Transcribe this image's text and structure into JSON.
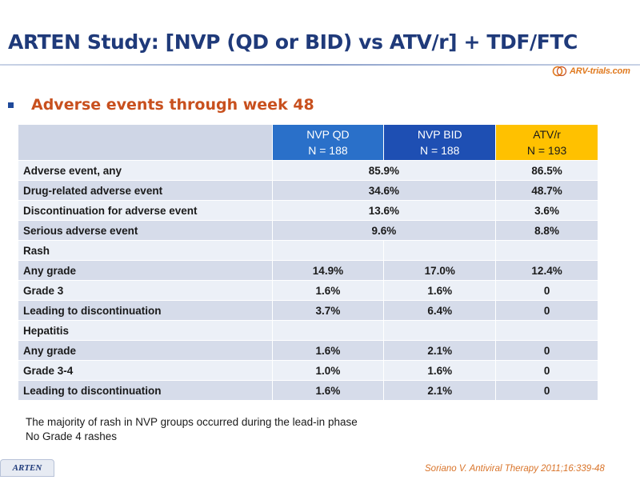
{
  "title": "ARTEN Study: [NVP (QD or BID) vs ATV/r] + TDF/FTC",
  "logo_text": "ARV-trials.com",
  "subtitle": "Adverse events through week 48",
  "table": {
    "headers": [
      {
        "line1": "NVP QD",
        "line2": "N = 188"
      },
      {
        "line1": "NVP BID",
        "line2": "N = 188"
      },
      {
        "line1": "ATV/r",
        "line2": "N = 193"
      }
    ],
    "rows": {
      "ae_any": {
        "label": "Adverse event, any",
        "nvp": "85.9%",
        "atv": "86.5%"
      },
      "drug_related": {
        "label": "Drug-related adverse event",
        "nvp": "34.6%",
        "atv": "48.7%"
      },
      "discontinuation": {
        "label": "Discontinuation for adverse event",
        "nvp": "13.6%",
        "atv": "3.6%"
      },
      "serious": {
        "label": "Serious adverse event",
        "nvp": "9.6%",
        "atv": "8.8%"
      },
      "rash": {
        "label": "Rash",
        "any_grade": {
          "label": "Any grade",
          "qd": "14.9%",
          "bid": "17.0%",
          "atv": "12.4%"
        },
        "grade3": {
          "label": "Grade 3",
          "qd": "1.6%",
          "bid": "1.6%",
          "atv": "0"
        },
        "leading": {
          "label": "Leading to discontinuation",
          "qd": "3.7%",
          "bid": "6.4%",
          "atv": "0"
        }
      },
      "hepatitis": {
        "label": "Hepatitis",
        "any_grade": {
          "label": "Any grade",
          "qd": "1.6%",
          "bid": "2.1%",
          "atv": "0"
        },
        "grade34": {
          "label": "Grade 3-4",
          "qd": "1.0%",
          "bid": "1.6%",
          "atv": "0"
        },
        "leading": {
          "label": "Leading to discontinuation",
          "qd": "1.6%",
          "bid": "2.1%",
          "atv": "0"
        }
      }
    }
  },
  "notes": [
    "The majority of rash in NVP groups occurred during the lead-in phase",
    "No Grade 4 rashes"
  ],
  "citation": "Soriano V. Antiviral Therapy 2011;16:339-48",
  "footer_tab": "ARTEN",
  "colors": {
    "title": "#1f3a7a",
    "subtitle": "#c8501e",
    "nvp_qd_header": "#2a70c9",
    "nvp_bid_header": "#1e4fb3",
    "atv_header": "#ffc100",
    "row_dark": "#d6dcea",
    "row_light": "#ecf0f7"
  }
}
